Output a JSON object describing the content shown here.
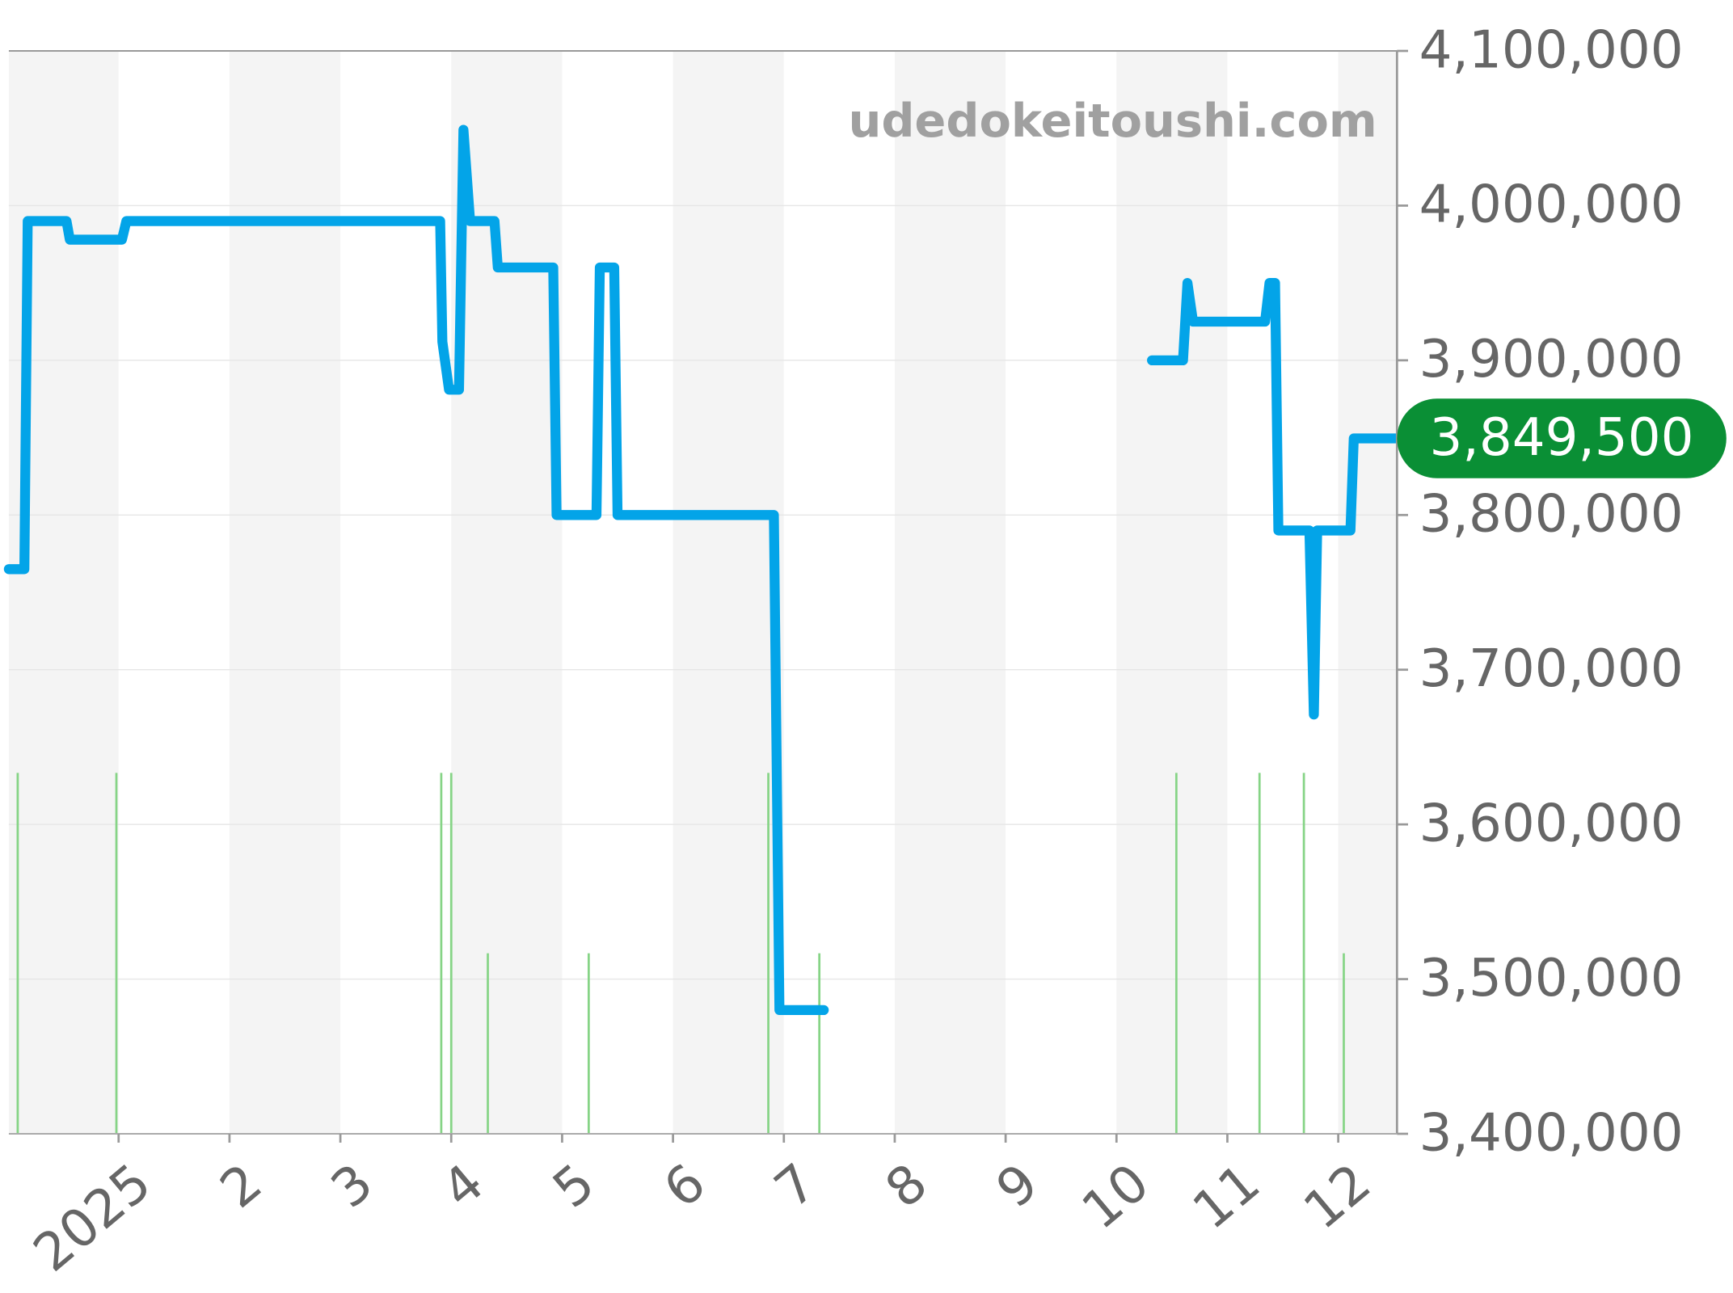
{
  "chart_data": {
    "type": "line",
    "watermark": "udedokeitoushi.com",
    "x": [
      0.01,
      0.15,
      0.18,
      0.53,
      0.56,
      1.03,
      1.07,
      3.9,
      3.92,
      3.98,
      4.07,
      4.11,
      4.17,
      4.39,
      4.42,
      4.92,
      4.95,
      5.31,
      5.34,
      5.47,
      5.5,
      6.91,
      6.96,
      7.36,
      8.5,
      10.32,
      10.6,
      10.64,
      10.69,
      11.34,
      11.38,
      11.43,
      11.46,
      11.74,
      11.78,
      11.81,
      12.11,
      12.14,
      12.53
    ],
    "series": [
      {
        "color": "#03a4e8",
        "values": [
          3765000,
          3765000,
          3990000,
          3990000,
          3978000,
          3978000,
          3990000,
          3990000,
          3912000,
          3881000,
          3881000,
          4049000,
          3990000,
          3990000,
          3960000,
          3960000,
          3800000,
          3800000,
          3960000,
          3960000,
          3800000,
          3800000,
          3480000,
          3480000,
          null,
          3900000,
          3900000,
          3950000,
          3925000,
          3925000,
          3950000,
          3950000,
          3790000,
          3790000,
          3671000,
          3790000,
          3790000,
          3849500,
          3849500
        ]
      }
    ],
    "volume": {
      "color": "#86d486",
      "axis": "y2",
      "x": [
        0.09,
        0.98,
        3.91,
        4.0,
        4.33,
        5.24,
        6.86,
        7.32,
        10.54,
        11.29,
        11.69,
        12.05
      ],
      "values": [
        2,
        2,
        2,
        2,
        1,
        1,
        2,
        1,
        2,
        2,
        2,
        1
      ]
    },
    "last_value": {
      "value": 3849500,
      "label": "3,849,500",
      "color": "#0a8f35"
    },
    "xlim": [
      0.01,
      12.53
    ],
    "xticks": [
      {
        "value": 1,
        "label": "2025"
      },
      2,
      3,
      4,
      5,
      6,
      7,
      8,
      9,
      10,
      11,
      12
    ],
    "ylim": [
      3400000,
      4100000
    ],
    "yticks": [
      {
        "value": 3400000,
        "label": "3,400,000"
      },
      {
        "value": 3500000,
        "label": "3,500,000"
      },
      {
        "value": 3600000,
        "label": "3,600,000"
      },
      {
        "value": 3700000,
        "label": "3,700,000"
      },
      {
        "value": 3800000,
        "label": "3,800,000"
      },
      {
        "value": 3900000,
        "label": "3,900,000"
      },
      {
        "value": 4000000,
        "label": "4,000,000"
      },
      {
        "value": 4100000,
        "label": "4,100,000"
      }
    ],
    "y2lim": [
      0,
      6
    ],
    "grid": true
  }
}
